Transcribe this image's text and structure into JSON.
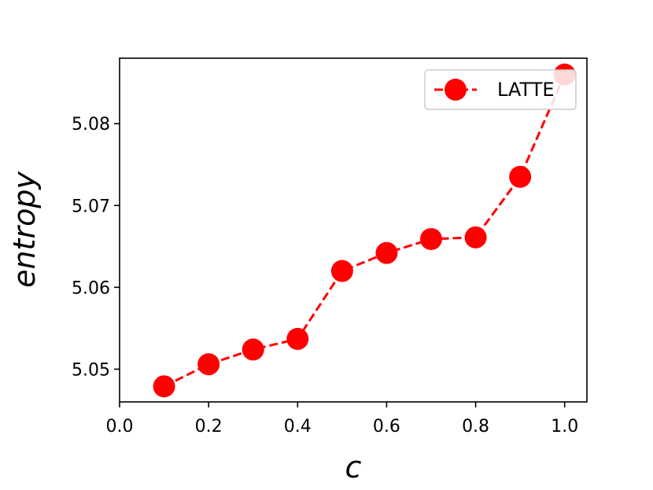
{
  "chart_data": {
    "type": "line",
    "xlabel": "c",
    "ylabel": "entropy",
    "xlim": [
      0.0,
      1.05
    ],
    "ylim": [
      5.046,
      5.088
    ],
    "xticks": [
      "0.0",
      "0.2",
      "0.4",
      "0.6",
      "0.8",
      "1.0"
    ],
    "yticks": [
      "5.05",
      "5.06",
      "5.07",
      "5.08"
    ],
    "grid": false,
    "legend_position": "top-right",
    "series": [
      {
        "name": "LATTE",
        "color": "#ff0000",
        "linestyle": "dashed",
        "marker": "circle",
        "x": [
          0.1,
          0.2,
          0.3,
          0.4,
          0.5,
          0.6,
          0.7,
          0.8,
          0.9,
          1.0
        ],
        "y": [
          5.0479,
          5.0506,
          5.0524,
          5.0537,
          5.062,
          5.0642,
          5.0659,
          5.0661,
          5.0735,
          5.086
        ]
      }
    ]
  }
}
